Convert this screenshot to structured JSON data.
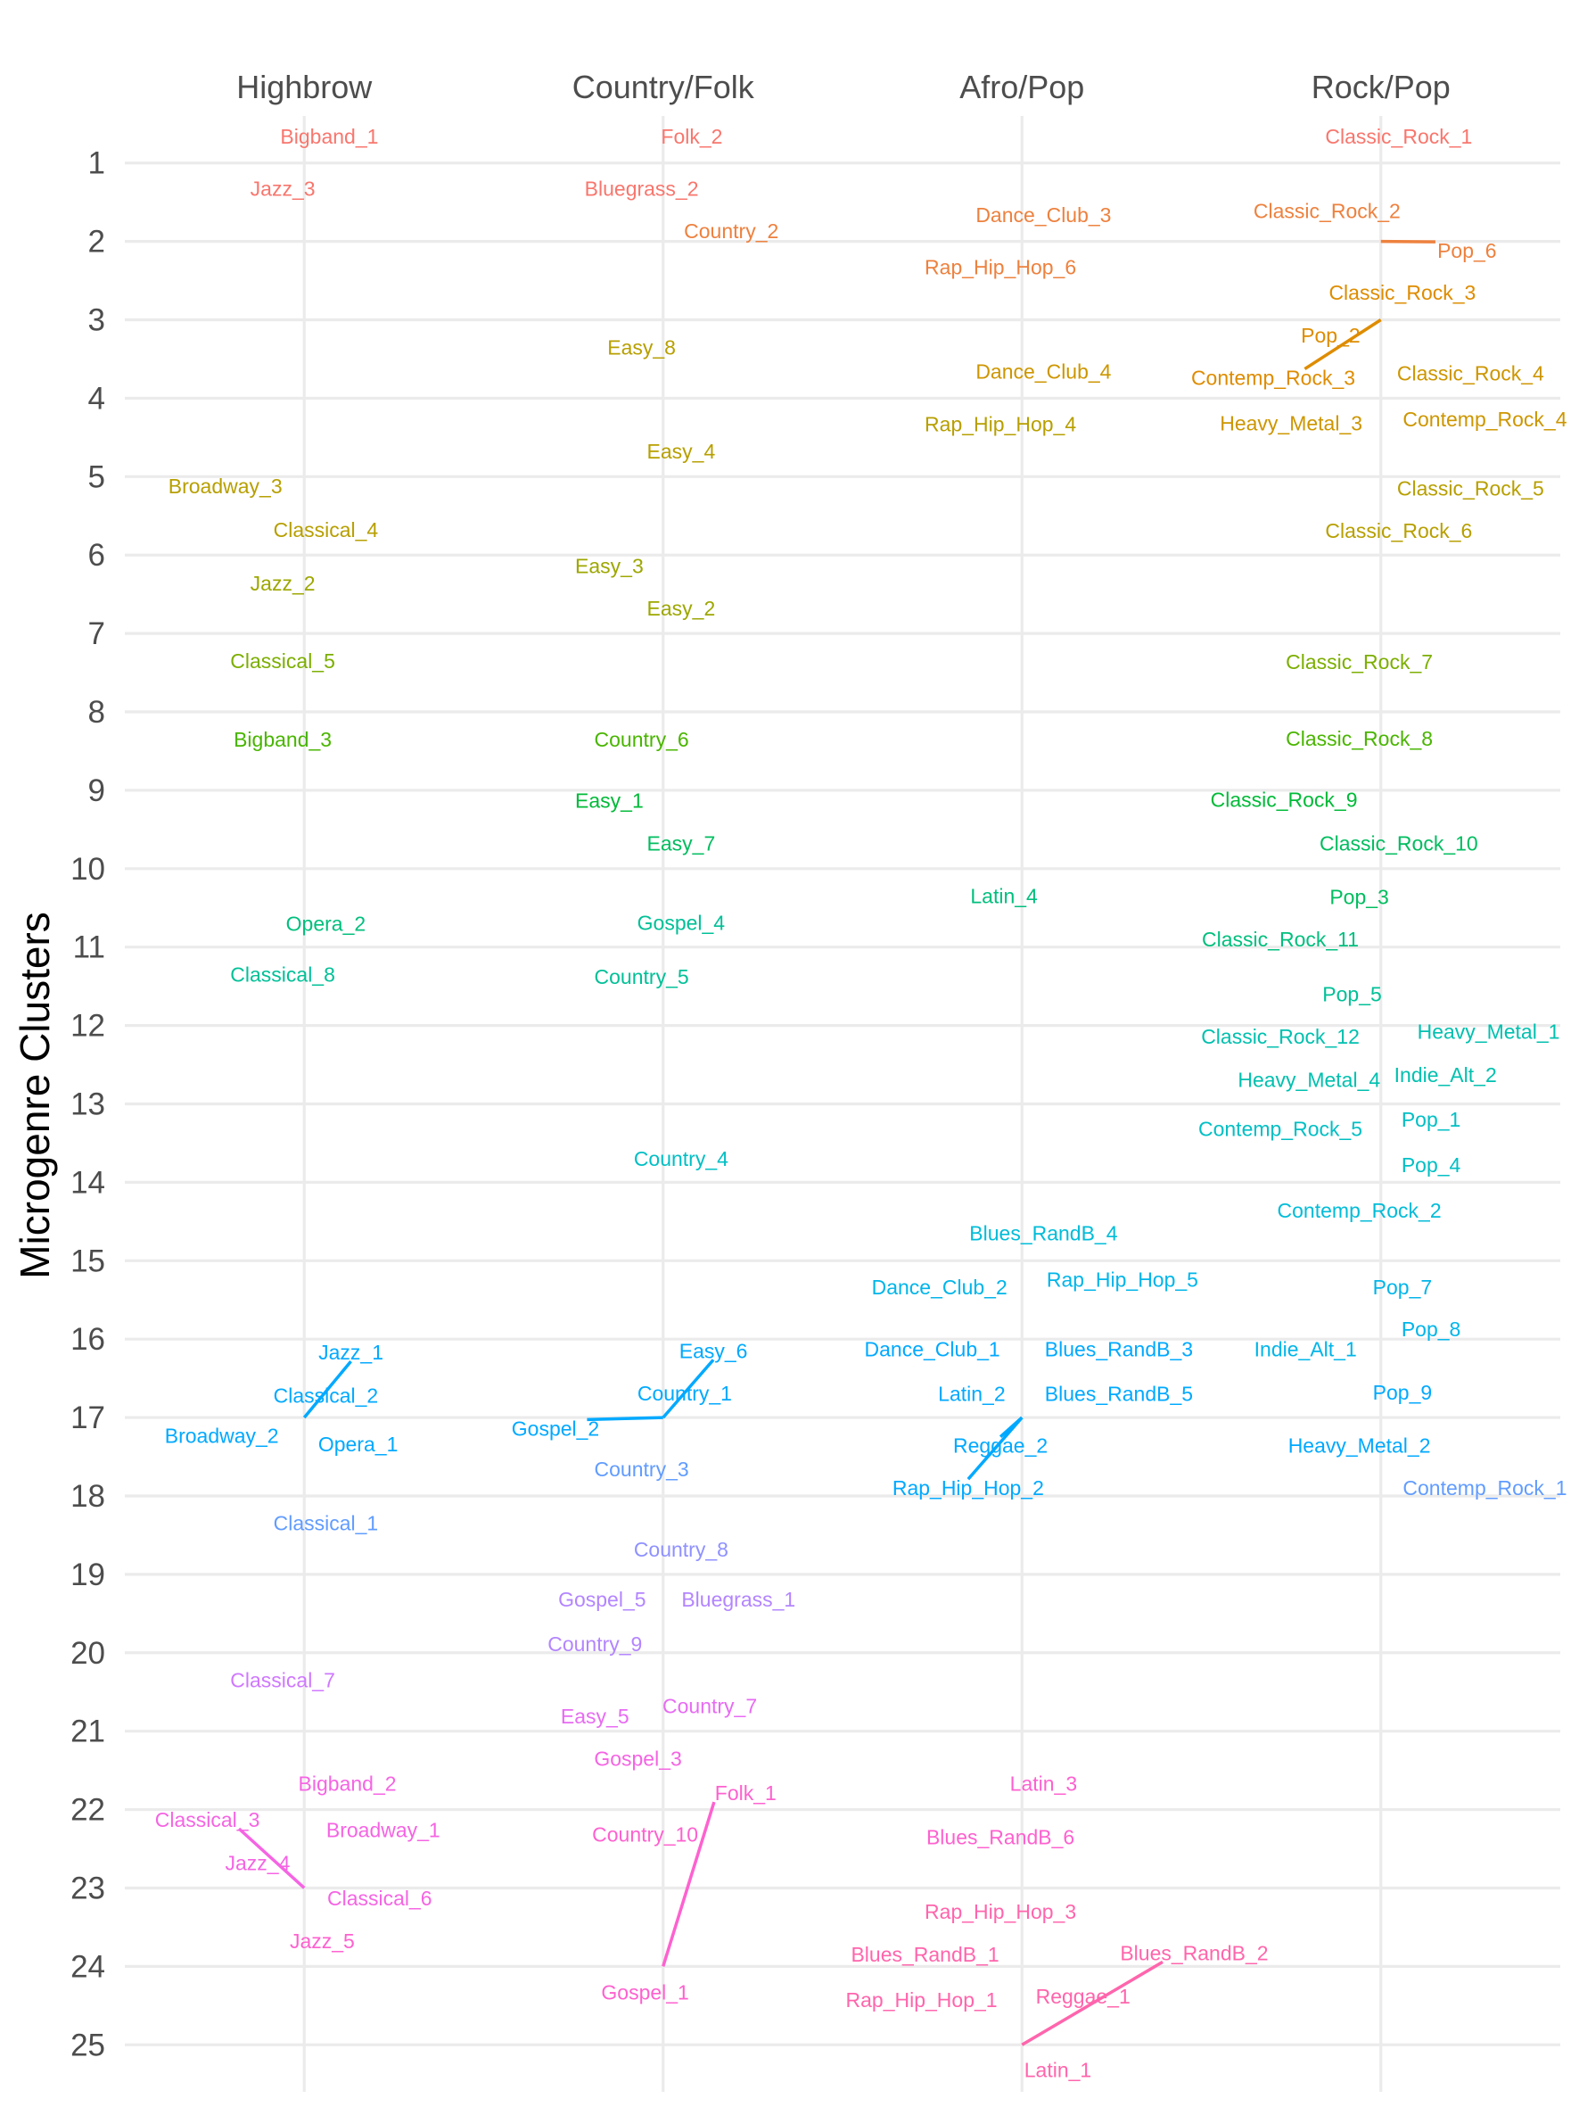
{
  "chart_data": {
    "type": "scatter",
    "title": "",
    "xlabel": "",
    "ylabel": "Microgenre Clusters",
    "ylim": [
      25.6,
      0.4
    ],
    "y_ticks": [
      "1",
      "2",
      "3",
      "4",
      "5",
      "6",
      "7",
      "8",
      "9",
      "10",
      "11",
      "12",
      "13",
      "14",
      "15",
      "16",
      "17",
      "18",
      "19",
      "20",
      "21",
      "22",
      "23",
      "24",
      "25"
    ],
    "categories": [
      "Highbrow",
      "Country/Folk",
      "Afro/Pop",
      "Rock/Pop"
    ],
    "grid": true,
    "legend": "none",
    "colors": {
      "1": "#f8766d",
      "2": "#ed813e",
      "3": "#de8c00",
      "4": "#cd9600",
      "5": "#b79f00",
      "6": "#9da700",
      "7": "#7cae00",
      "8": "#49b500",
      "9": "#00ba38",
      "10": "#00bd5f",
      "11": "#00bf7d",
      "12": "#00c097",
      "13": "#00c0af",
      "14": "#00bfc4",
      "15": "#00bcd8",
      "16": "#00b5e9",
      "17": "#00a9ff",
      "18": "#619cff",
      "19": "#8f91ff",
      "20": "#b385ff",
      "21": "#cf78ff",
      "22": "#e76bf3",
      "23": "#f564e3",
      "24": "#fe61cf",
      "25": "#ff65ac"
    },
    "points": [
      {
        "label": "Bigband_1",
        "group": "Highbrow",
        "cluster": 1,
        "y": 0.66,
        "dx": 0.07
      },
      {
        "label": "Jazz_3",
        "group": "Highbrow",
        "cluster": 1,
        "y": 1.33,
        "dx": -0.06
      },
      {
        "label": "Broadway_3",
        "group": "Highbrow",
        "cluster": 5,
        "y": 5.12,
        "dx": -0.22
      },
      {
        "label": "Classical_4",
        "group": "Highbrow",
        "cluster": 5,
        "y": 5.68,
        "dx": 0.06
      },
      {
        "label": "Jazz_2",
        "group": "Highbrow",
        "cluster": 6,
        "y": 6.36,
        "dx": -0.06
      },
      {
        "label": "Classical_5",
        "group": "Highbrow",
        "cluster": 7,
        "y": 7.35,
        "dx": -0.06
      },
      {
        "label": "Bigband_3",
        "group": "Highbrow",
        "cluster": 8,
        "y": 8.35,
        "dx": -0.06
      },
      {
        "label": "Opera_2",
        "group": "Highbrow",
        "cluster": 11,
        "y": 10.7,
        "dx": 0.06
      },
      {
        "label": "Classical_8",
        "group": "Highbrow",
        "cluster": 12,
        "y": 11.35,
        "dx": -0.06
      },
      {
        "label": "Jazz_1",
        "group": "Highbrow",
        "cluster": 17,
        "y": 16.17,
        "dx": 0.13,
        "line": true
      },
      {
        "label": "Classical_2",
        "group": "Highbrow",
        "cluster": 17,
        "y": 16.72,
        "dx": 0.06
      },
      {
        "label": "Broadway_2",
        "group": "Highbrow",
        "cluster": 17,
        "y": 17.23,
        "dx": -0.23
      },
      {
        "label": "Opera_1",
        "group": "Highbrow",
        "cluster": 17,
        "y": 17.34,
        "dx": 0.15
      },
      {
        "label": "Classical_1",
        "group": "Highbrow",
        "cluster": 18,
        "y": 18.35,
        "dx": 0.06
      },
      {
        "label": "Classical_7",
        "group": "Highbrow",
        "cluster": 21,
        "y": 20.35,
        "dx": -0.06
      },
      {
        "label": "Bigband_2",
        "group": "Highbrow",
        "cluster": 23,
        "y": 21.67,
        "dx": 0.12
      },
      {
        "label": "Classical_3",
        "group": "Highbrow",
        "cluster": 23,
        "y": 22.13,
        "dx": -0.27,
        "line": true
      },
      {
        "label": "Broadway_1",
        "group": "Highbrow",
        "cluster": 23,
        "y": 22.26,
        "dx": 0.22
      },
      {
        "label": "Jazz_4",
        "group": "Highbrow",
        "cluster": 23,
        "y": 22.68,
        "dx": -0.13
      },
      {
        "label": "Classical_6",
        "group": "Highbrow",
        "cluster": 23,
        "y": 23.13,
        "dx": 0.21
      },
      {
        "label": "Jazz_5",
        "group": "Highbrow",
        "cluster": 24,
        "y": 23.68,
        "dx": 0.05
      },
      {
        "label": "Folk_2",
        "group": "Country/Folk",
        "cluster": 1,
        "y": 0.66,
        "dx": 0.08
      },
      {
        "label": "Bluegrass_2",
        "group": "Country/Folk",
        "cluster": 1,
        "y": 1.33,
        "dx": -0.06
      },
      {
        "label": "Country_2",
        "group": "Country/Folk",
        "cluster": 2,
        "y": 1.87,
        "dx": 0.19
      },
      {
        "label": "Easy_8",
        "group": "Country/Folk",
        "cluster": 5,
        "y": 3.35,
        "dx": -0.06
      },
      {
        "label": "Easy_4",
        "group": "Country/Folk",
        "cluster": 5,
        "y": 4.68,
        "dx": 0.05
      },
      {
        "label": "Easy_3",
        "group": "Country/Folk",
        "cluster": 6,
        "y": 6.14,
        "dx": -0.15
      },
      {
        "label": "Easy_2",
        "group": "Country/Folk",
        "cluster": 6,
        "y": 6.68,
        "dx": 0.05
      },
      {
        "label": "Country_6",
        "group": "Country/Folk",
        "cluster": 8,
        "y": 8.35,
        "dx": -0.06
      },
      {
        "label": "Easy_1",
        "group": "Country/Folk",
        "cluster": 9,
        "y": 9.13,
        "dx": -0.15
      },
      {
        "label": "Easy_7",
        "group": "Country/Folk",
        "cluster": 10,
        "y": 9.68,
        "dx": 0.05
      },
      {
        "label": "Gospel_4",
        "group": "Country/Folk",
        "cluster": 12,
        "y": 10.69,
        "dx": 0.05
      },
      {
        "label": "Country_5",
        "group": "Country/Folk",
        "cluster": 12,
        "y": 11.38,
        "dx": -0.06
      },
      {
        "label": "Country_4",
        "group": "Country/Folk",
        "cluster": 14,
        "y": 13.7,
        "dx": 0.05
      },
      {
        "label": "Easy_6",
        "group": "Country/Folk",
        "cluster": 17,
        "y": 16.15,
        "dx": 0.14,
        "line": true
      },
      {
        "label": "Country_1",
        "group": "Country/Folk",
        "cluster": 17,
        "y": 16.69,
        "dx": 0.06
      },
      {
        "label": "Gospel_2",
        "group": "Country/Folk",
        "cluster": 17,
        "y": 17.14,
        "dx": -0.3,
        "line": true
      },
      {
        "label": "Country_3",
        "group": "Country/Folk",
        "cluster": 18,
        "y": 17.66,
        "dx": -0.06
      },
      {
        "label": "Country_8",
        "group": "Country/Folk",
        "cluster": 19,
        "y": 18.68,
        "dx": 0.05
      },
      {
        "label": "Gospel_5",
        "group": "Country/Folk",
        "cluster": 20,
        "y": 19.32,
        "dx": -0.17
      },
      {
        "label": "Bluegrass_1",
        "group": "Country/Folk",
        "cluster": 20,
        "y": 19.32,
        "dx": 0.21
      },
      {
        "label": "Country_9",
        "group": "Country/Folk",
        "cluster": 20,
        "y": 19.89,
        "dx": -0.19
      },
      {
        "label": "Country_7",
        "group": "Country/Folk",
        "cluster": 22,
        "y": 20.68,
        "dx": 0.13
      },
      {
        "label": "Easy_5",
        "group": "Country/Folk",
        "cluster": 22,
        "y": 20.81,
        "dx": -0.19
      },
      {
        "label": "Gospel_3",
        "group": "Country/Folk",
        "cluster": 23,
        "y": 21.35,
        "dx": -0.07
      },
      {
        "label": "Folk_1",
        "group": "Country/Folk",
        "cluster": 24,
        "y": 21.79,
        "dx": 0.23,
        "line": true
      },
      {
        "label": "Country_10",
        "group": "Country/Folk",
        "cluster": 24,
        "y": 22.32,
        "dx": -0.05
      },
      {
        "label": "Gospel_1",
        "group": "Country/Folk",
        "cluster": 24,
        "y": 24.33,
        "dx": -0.05
      },
      {
        "label": "Dance_Club_3",
        "group": "Afro/Pop",
        "cluster": 2,
        "y": 1.66,
        "dx": 0.06
      },
      {
        "label": "Rap_Hip_Hop_6",
        "group": "Afro/Pop",
        "cluster": 2,
        "y": 2.33,
        "dx": -0.06
      },
      {
        "label": "Dance_Club_4",
        "group": "Afro/Pop",
        "cluster": 4,
        "y": 3.66,
        "dx": 0.06
      },
      {
        "label": "Rap_Hip_Hop_4",
        "group": "Afro/Pop",
        "cluster": 5,
        "y": 4.33,
        "dx": -0.06
      },
      {
        "label": "Latin_4",
        "group": "Afro/Pop",
        "cluster": 11,
        "y": 10.35,
        "dx": -0.05
      },
      {
        "label": "Blues_RandB_4",
        "group": "Afro/Pop",
        "cluster": 15,
        "y": 14.65,
        "dx": 0.06
      },
      {
        "label": "Rap_Hip_Hop_5",
        "group": "Afro/Pop",
        "cluster": 16,
        "y": 15.24,
        "dx": 0.28
      },
      {
        "label": "Dance_Club_2",
        "group": "Afro/Pop",
        "cluster": 16,
        "y": 15.34,
        "dx": -0.23
      },
      {
        "label": "Dance_Club_1",
        "group": "Afro/Pop",
        "cluster": 17,
        "y": 16.13,
        "dx": -0.25
      },
      {
        "label": "Blues_RandB_3",
        "group": "Afro/Pop",
        "cluster": 17,
        "y": 16.13,
        "dx": 0.27
      },
      {
        "label": "Latin_2",
        "group": "Afro/Pop",
        "cluster": 17,
        "y": 16.7,
        "dx": -0.14
      },
      {
        "label": "Blues_RandB_5",
        "group": "Afro/Pop",
        "cluster": 17,
        "y": 16.7,
        "dx": 0.27
      },
      {
        "label": "Reggae_2",
        "group": "Afro/Pop",
        "cluster": 17,
        "y": 17.36,
        "dx": -0.06,
        "line": true
      },
      {
        "label": "Rap_Hip_Hop_2",
        "group": "Afro/Pop",
        "cluster": 17,
        "y": 17.9,
        "dx": -0.15,
        "line": true
      },
      {
        "label": "Latin_3",
        "group": "Afro/Pop",
        "cluster": 24,
        "y": 21.67,
        "dx": 0.06
      },
      {
        "label": "Blues_RandB_6",
        "group": "Afro/Pop",
        "cluster": 24,
        "y": 22.35,
        "dx": -0.06
      },
      {
        "label": "Rap_Hip_Hop_3",
        "group": "Afro/Pop",
        "cluster": 25,
        "y": 23.3,
        "dx": -0.06
      },
      {
        "label": "Blues_RandB_1",
        "group": "Afro/Pop",
        "cluster": 25,
        "y": 23.85,
        "dx": -0.27
      },
      {
        "label": "Blues_RandB_2",
        "group": "Afro/Pop",
        "cluster": 25,
        "y": 23.83,
        "dx": 0.48,
        "line": true
      },
      {
        "label": "Reggae_1",
        "group": "Afro/Pop",
        "cluster": 25,
        "y": 24.38,
        "dx": 0.17
      },
      {
        "label": "Rap_Hip_Hop_1",
        "group": "Afro/Pop",
        "cluster": 25,
        "y": 24.43,
        "dx": -0.28
      },
      {
        "label": "Latin_1",
        "group": "Afro/Pop",
        "cluster": 25,
        "y": 25.32,
        "dx": 0.1
      },
      {
        "label": "Classic_Rock_1",
        "group": "Rock/Pop",
        "cluster": 1,
        "y": 0.66,
        "dx": 0.05
      },
      {
        "label": "Classic_Rock_2",
        "group": "Rock/Pop",
        "cluster": 2,
        "y": 1.61,
        "dx": -0.15
      },
      {
        "label": "Pop_6",
        "group": "Rock/Pop",
        "cluster": 2,
        "y": 2.12,
        "dx": 0.24,
        "line": true
      },
      {
        "label": "Classic_Rock_3",
        "group": "Rock/Pop",
        "cluster": 3,
        "y": 2.65,
        "dx": 0.06
      },
      {
        "label": "Pop_2",
        "group": "Rock/Pop",
        "cluster": 3,
        "y": 3.2,
        "dx": -0.14
      },
      {
        "label": "Contemp_Rock_3",
        "group": "Rock/Pop",
        "cluster": 3,
        "y": 3.74,
        "dx": -0.3,
        "line": true
      },
      {
        "label": "Classic_Rock_4",
        "group": "Rock/Pop",
        "cluster": 4,
        "y": 3.68,
        "dx": 0.25
      },
      {
        "label": "Heavy_Metal_3",
        "group": "Rock/Pop",
        "cluster": 4,
        "y": 4.32,
        "dx": -0.25
      },
      {
        "label": "Contemp_Rock_4",
        "group": "Rock/Pop",
        "cluster": 4,
        "y": 4.27,
        "dx": 0.29
      },
      {
        "label": "Classic_Rock_5",
        "group": "Rock/Pop",
        "cluster": 5,
        "y": 5.15,
        "dx": 0.25
      },
      {
        "label": "Classic_Rock_6",
        "group": "Rock/Pop",
        "cluster": 5,
        "y": 5.69,
        "dx": 0.05
      },
      {
        "label": "Classic_Rock_7",
        "group": "Rock/Pop",
        "cluster": 7,
        "y": 7.36,
        "dx": -0.06
      },
      {
        "label": "Classic_Rock_8",
        "group": "Rock/Pop",
        "cluster": 8,
        "y": 8.34,
        "dx": -0.06
      },
      {
        "label": "Classic_Rock_9",
        "group": "Rock/Pop",
        "cluster": 9,
        "y": 9.12,
        "dx": -0.27
      },
      {
        "label": "Classic_Rock_10",
        "group": "Rock/Pop",
        "cluster": 10,
        "y": 9.68,
        "dx": 0.05
      },
      {
        "label": "Pop_3",
        "group": "Rock/Pop",
        "cluster": 10,
        "y": 10.36,
        "dx": -0.06
      },
      {
        "label": "Classic_Rock_11",
        "group": "Rock/Pop",
        "cluster": 11,
        "y": 10.9,
        "dx": -0.28
      },
      {
        "label": "Pop_5",
        "group": "Rock/Pop",
        "cluster": 12,
        "y": 11.6,
        "dx": -0.08
      },
      {
        "label": "Heavy_Metal_1",
        "group": "Rock/Pop",
        "cluster": 13,
        "y": 12.08,
        "dx": 0.3
      },
      {
        "label": "Classic_Rock_12",
        "group": "Rock/Pop",
        "cluster": 13,
        "y": 12.14,
        "dx": -0.28
      },
      {
        "label": "Indie_Alt_2",
        "group": "Rock/Pop",
        "cluster": 13,
        "y": 12.63,
        "dx": 0.18
      },
      {
        "label": "Heavy_Metal_4",
        "group": "Rock/Pop",
        "cluster": 13,
        "y": 12.69,
        "dx": -0.2
      },
      {
        "label": "Pop_1",
        "group": "Rock/Pop",
        "cluster": 14,
        "y": 13.2,
        "dx": 0.14
      },
      {
        "label": "Contemp_Rock_5",
        "group": "Rock/Pop",
        "cluster": 14,
        "y": 13.32,
        "dx": -0.28
      },
      {
        "label": "Pop_4",
        "group": "Rock/Pop",
        "cluster": 14,
        "y": 13.78,
        "dx": 0.14
      },
      {
        "label": "Contemp_Rock_2",
        "group": "Rock/Pop",
        "cluster": 15,
        "y": 14.36,
        "dx": -0.06
      },
      {
        "label": "Pop_7",
        "group": "Rock/Pop",
        "cluster": 16,
        "y": 15.34,
        "dx": 0.06
      },
      {
        "label": "Pop_8",
        "group": "Rock/Pop",
        "cluster": 16,
        "y": 15.87,
        "dx": 0.14
      },
      {
        "label": "Indie_Alt_1",
        "group": "Rock/Pop",
        "cluster": 16,
        "y": 16.13,
        "dx": -0.21
      },
      {
        "label": "Pop_9",
        "group": "Rock/Pop",
        "cluster": 17,
        "y": 16.68,
        "dx": 0.06
      },
      {
        "label": "Heavy_Metal_2",
        "group": "Rock/Pop",
        "cluster": 17,
        "y": 17.36,
        "dx": -0.06
      },
      {
        "label": "Contemp_Rock_1",
        "group": "Rock/Pop",
        "cluster": 18,
        "y": 17.9,
        "dx": 0.29
      }
    ]
  }
}
